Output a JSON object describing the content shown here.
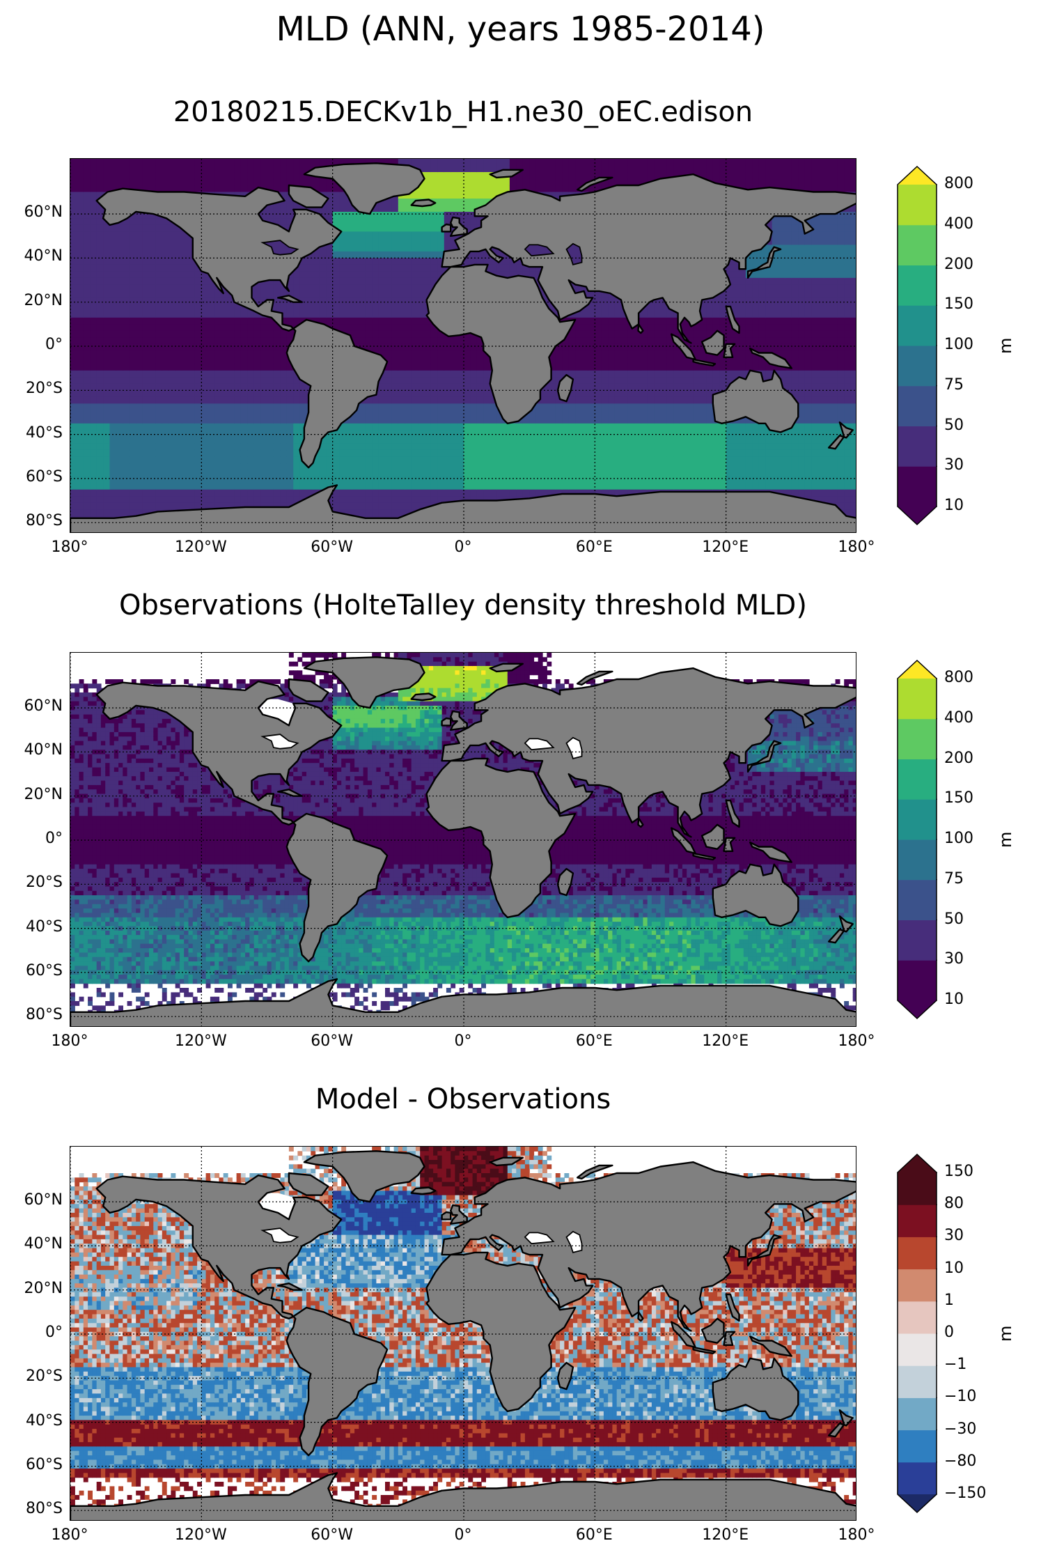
{
  "suptitle": "MLD (ANN, years 1985-2014)",
  "panels": [
    {
      "title": "20180215.DECKv1b_H1.ne30_oEC.edison",
      "kind": "model",
      "colorbar": {
        "label": "m",
        "levels": [
          "10",
          "30",
          "50",
          "75",
          "100",
          "150",
          "200",
          "400",
          "800"
        ],
        "colors": [
          "#440154",
          "#472d7b",
          "#3b528b",
          "#2c728e",
          "#21918c",
          "#28ae80",
          "#5ec962",
          "#addc30",
          "#fde725"
        ],
        "under_color": "#440154",
        "over_color": "#fde725"
      }
    },
    {
      "title": "Observations (HolteTalley density threshold MLD)",
      "kind": "obs",
      "colorbar": {
        "label": "m",
        "levels": [
          "10",
          "30",
          "50",
          "75",
          "100",
          "150",
          "200",
          "400",
          "800"
        ],
        "colors": [
          "#440154",
          "#472d7b",
          "#3b528b",
          "#2c728e",
          "#21918c",
          "#28ae80",
          "#5ec962",
          "#addc30",
          "#fde725"
        ],
        "under_color": "#440154",
        "over_color": "#fde725"
      }
    },
    {
      "title": "Model - Observations",
      "kind": "diff",
      "colorbar": {
        "label": "m",
        "levels": [
          "−150",
          "−80",
          "−30",
          "−10",
          "−1",
          "0",
          "1",
          "10",
          "30",
          "80",
          "150"
        ],
        "colors": [
          "#2a3f98",
          "#2f7fc0",
          "#72a9c6",
          "#c3d1da",
          "#eae6e6",
          "#e6c6bf",
          "#d18a6f",
          "#b8472e",
          "#7c1021",
          "#4a0c18"
        ],
        "under_color": "#1c2a66",
        "over_color": "#4a0c18"
      }
    }
  ],
  "axes": {
    "lat_ticks": [
      "60°N",
      "40°N",
      "20°N",
      "0°",
      "20°S",
      "40°S",
      "60°S",
      "80°S"
    ],
    "lon_ticks": [
      "180°",
      "120°W",
      "60°W",
      "0°",
      "60°E",
      "120°E",
      "180°"
    ],
    "lat_values": [
      60,
      40,
      20,
      0,
      -20,
      -40,
      -60,
      -80
    ],
    "lon_values": [
      -180,
      -120,
      -60,
      0,
      60,
      120,
      180
    ],
    "lat_range": [
      -85,
      85
    ],
    "lon_range": [
      -180,
      180
    ],
    "land_color": "#808080",
    "missing_color": "#ffffff",
    "gridlines": "dotted"
  }
}
